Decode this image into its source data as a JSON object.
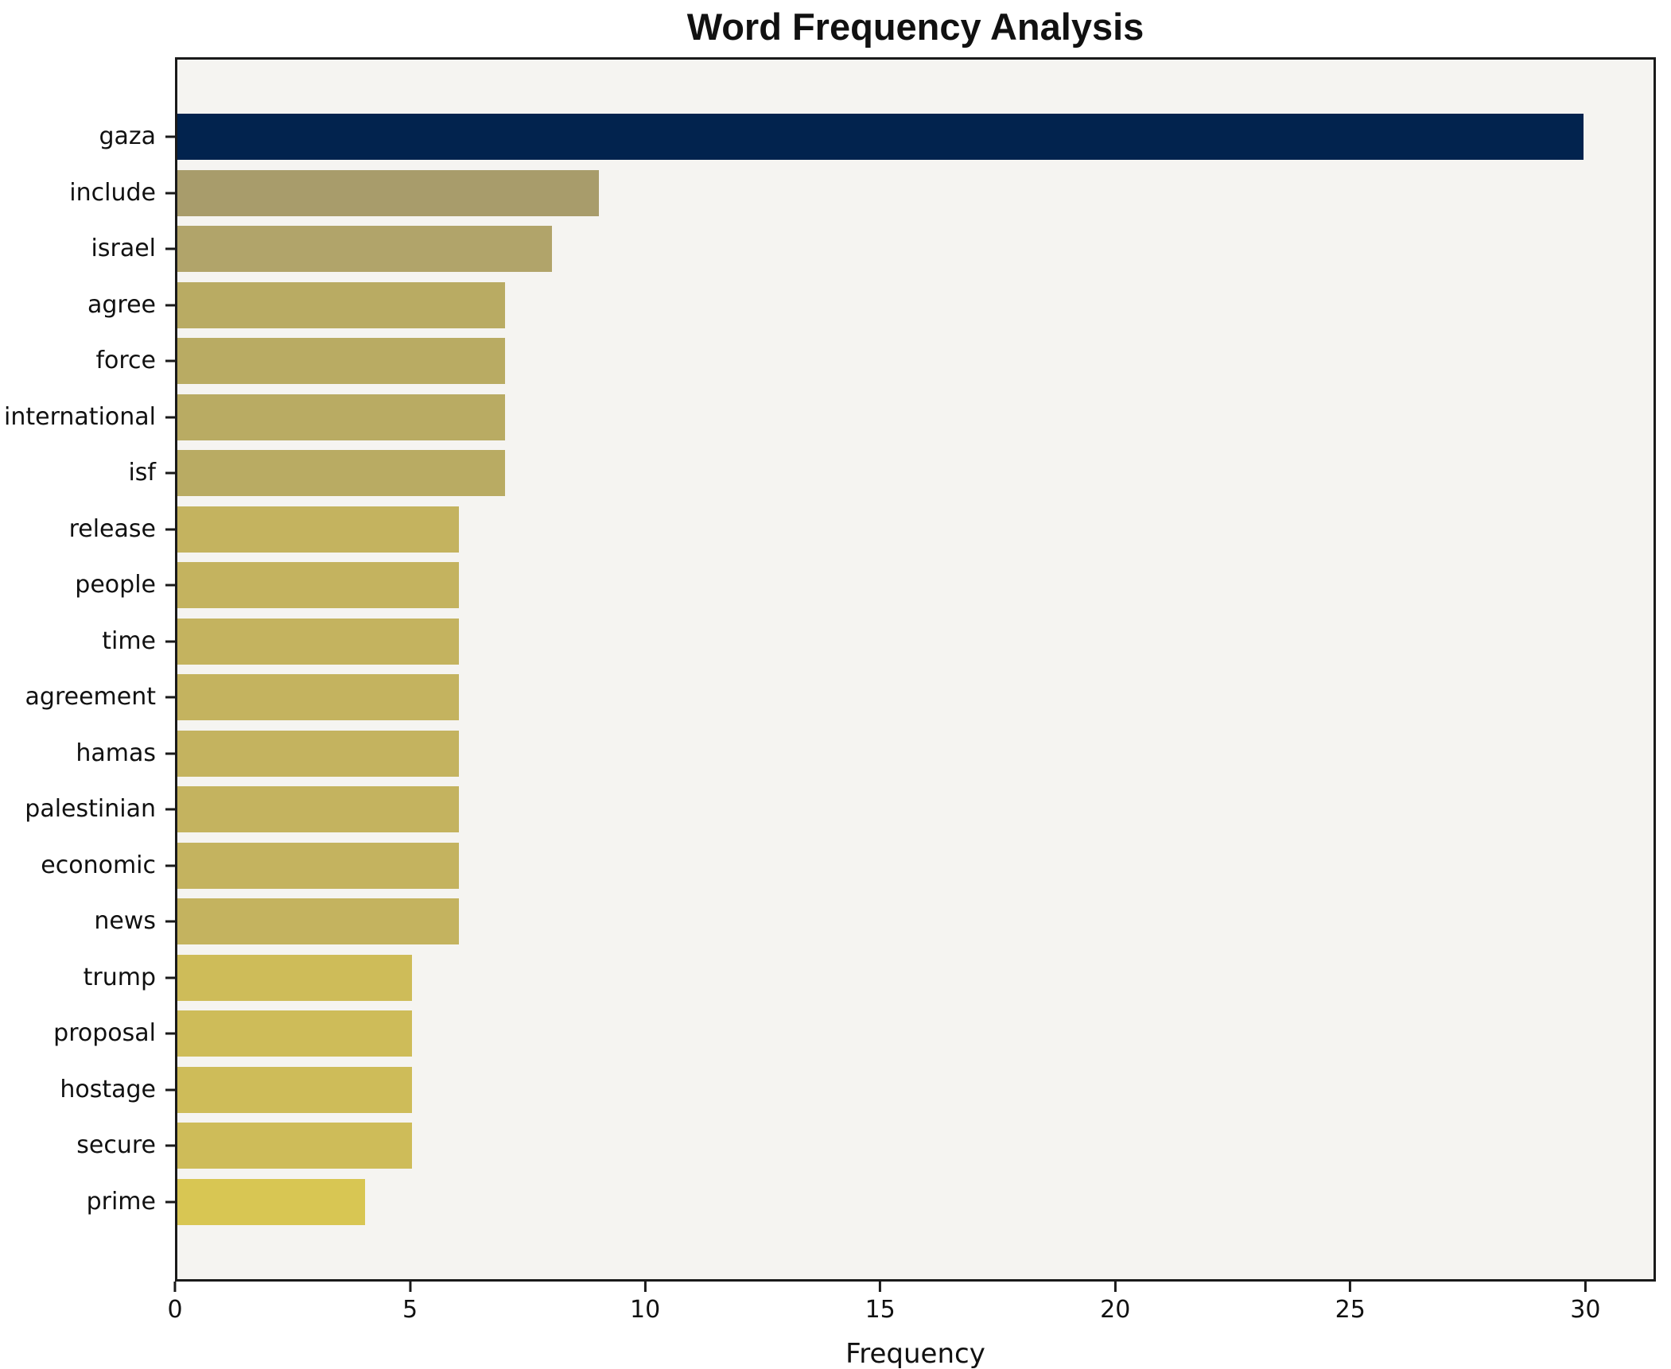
{
  "chart_data": {
    "type": "bar",
    "orientation": "horizontal",
    "title": "Word Frequency Analysis",
    "xlabel": "Frequency",
    "ylabel": "",
    "categories": [
      "gaza",
      "include",
      "israel",
      "agree",
      "force",
      "international",
      "isf",
      "release",
      "people",
      "time",
      "agreement",
      "hamas",
      "palestinian",
      "economic",
      "news",
      "trump",
      "proposal",
      "hostage",
      "secure",
      "prime"
    ],
    "values": [
      30,
      9,
      8,
      7,
      7,
      7,
      7,
      6,
      6,
      6,
      6,
      6,
      6,
      6,
      6,
      5,
      5,
      5,
      5,
      4
    ],
    "bar_colors": [
      "#02234e",
      "#a89c6b",
      "#b1a46a",
      "#b9ab63",
      "#b9ab63",
      "#b9ab63",
      "#b9ab63",
      "#c4b35f",
      "#c4b35f",
      "#c4b35f",
      "#c4b35f",
      "#c4b35f",
      "#c4b35f",
      "#c4b35f",
      "#c4b35f",
      "#cebc59",
      "#cebc59",
      "#cebc59",
      "#cebc59",
      "#d8c653"
    ],
    "xlim": [
      0,
      31.5
    ],
    "xticks": [
      0,
      5,
      10,
      15,
      20,
      25,
      30
    ],
    "grid": false,
    "legend_position": "none",
    "plot_background": "#f5f4f1",
    "figure_background": "#ffffff",
    "spine_color": "#1a1a1a",
    "bar_height_ratio": 0.8
  }
}
